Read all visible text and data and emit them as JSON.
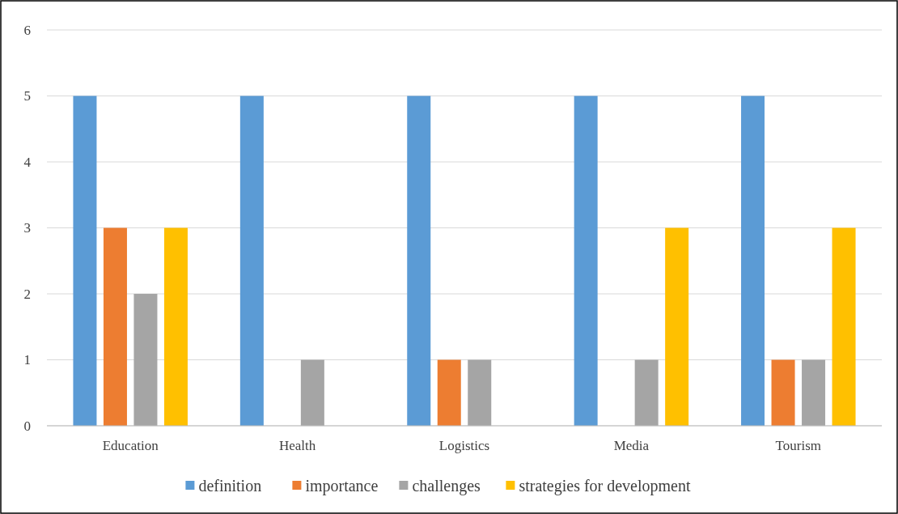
{
  "chart_data": {
    "type": "bar",
    "categories": [
      "Education",
      "Health",
      "Logistics",
      "Media",
      "Tourism"
    ],
    "series": [
      {
        "name": "definition",
        "color": "#5b9bd5",
        "values": [
          5,
          5,
          5,
          5,
          5
        ]
      },
      {
        "name": "importance",
        "color": "#ed7d31",
        "values": [
          3,
          0,
          1,
          0,
          1
        ]
      },
      {
        "name": "challenges",
        "color": "#a5a5a5",
        "values": [
          2,
          1,
          1,
          1,
          1
        ]
      },
      {
        "name": "strategies for development",
        "color": "#ffc000",
        "values": [
          3,
          0,
          0,
          3,
          3
        ]
      }
    ],
    "ylim": [
      0,
      6
    ],
    "yticks": [
      0,
      1,
      2,
      3,
      4,
      5,
      6
    ],
    "grid": "y",
    "legend": "bottom"
  }
}
